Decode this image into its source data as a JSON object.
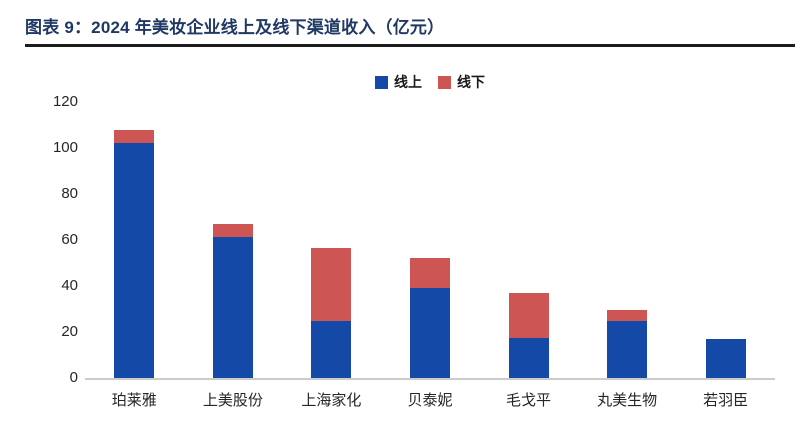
{
  "page": {
    "title": "图表 9：2024 年美妆企业线上及线下渠道收入（亿元）",
    "title_color": "#1f3864"
  },
  "chart_data": {
    "type": "bar",
    "stacked": true,
    "title": "2024 年美妆企业线上及线下渠道收入（亿元）",
    "unit": "亿元",
    "categories": [
      "珀莱雅",
      "上美股份",
      "上海家化",
      "贝泰妮",
      "毛戈平",
      "丸美生物",
      "若羽臣"
    ],
    "series": [
      {
        "name": "线上",
        "color": "#1549a8",
        "values": [
          102,
          61.5,
          25,
          39,
          17.5,
          25,
          17
        ]
      },
      {
        "name": "线下",
        "color": "#cd5553",
        "values": [
          6,
          5.5,
          31.5,
          13,
          19.5,
          4.5,
          0
        ]
      }
    ],
    "totals": [
      108,
      67,
      56.5,
      52,
      37,
      29.5,
      17
    ],
    "xlabel": "",
    "ylabel": "",
    "ylim": [
      0,
      120
    ],
    "yticks": [
      0,
      20,
      40,
      60,
      80,
      100,
      120
    ],
    "grid": false,
    "legend_position": "top-center"
  }
}
